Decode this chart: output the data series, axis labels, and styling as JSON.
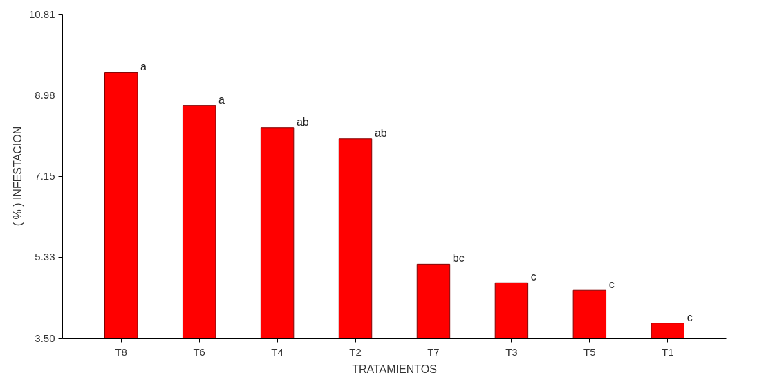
{
  "chart_data": {
    "type": "bar",
    "xlabel": "TRATAMIENTOS",
    "ylabel": "( % ) INFESTACION",
    "categories": [
      "T8",
      "T6",
      "T4",
      "T2",
      "T7",
      "T3",
      "T5",
      "T1"
    ],
    "values": [
      9.5,
      8.75,
      8.25,
      8.0,
      5.17,
      4.75,
      4.58,
      3.84
    ],
    "color": "#ff0000",
    "ylim": [
      3.5,
      10.81
    ],
    "yticks": [
      {
        "value": 3.5,
        "label": "3.50"
      },
      {
        "value": 5.33,
        "label": "5.33"
      },
      {
        "value": 7.15,
        "label": "7.15"
      },
      {
        "value": 8.98,
        "label": "8.98"
      },
      {
        "value": 10.81,
        "label": "10.81"
      }
    ],
    "grid": false,
    "annotations": [
      {
        "text": "a",
        "x": "T8",
        "y": 9.5
      },
      {
        "text": "a",
        "x": "T6",
        "y": 8.75
      },
      {
        "text": "ab",
        "x": "T4",
        "y": 8.25
      },
      {
        "text": "ab",
        "x": "T2",
        "y": 8.0
      },
      {
        "text": "bc",
        "x": "T7",
        "y": 5.17
      },
      {
        "text": "c",
        "x": "T3",
        "y": 4.75
      },
      {
        "text": "c",
        "x": "T5",
        "y": 4.58
      },
      {
        "text": "c",
        "x": "T1",
        "y": 3.84
      }
    ]
  }
}
